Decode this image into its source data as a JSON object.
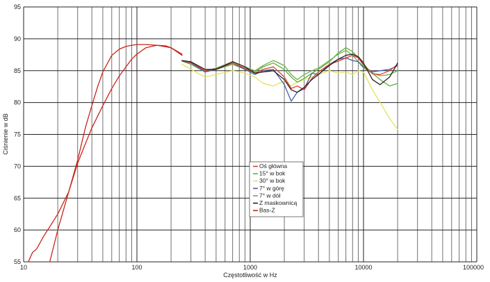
{
  "chart_data": {
    "type": "line",
    "xlabel": "Częstotliwość w Hz",
    "ylabel": "Ciśnienie w dB",
    "xscale": "log",
    "xlim": [
      10,
      100000
    ],
    "ylim": [
      55,
      95
    ],
    "xticks": [
      10,
      100,
      1000,
      10000,
      100000
    ],
    "xtick_labels": [
      "10",
      "100",
      "1000",
      "10000",
      "100000"
    ],
    "yticks": [
      55,
      60,
      65,
      70,
      75,
      80,
      85,
      90,
      95
    ],
    "ytick_labels": [
      "55",
      "60",
      "65",
      "70",
      "75",
      "80",
      "85",
      "90",
      "95"
    ],
    "grid": true,
    "legend_position": "bottom-center",
    "series": [
      {
        "name": "Oś główna",
        "color": "#e03c28",
        "x": [
          250,
          300,
          400,
          500,
          700,
          900,
          1100,
          1300,
          1600,
          2000,
          2300,
          2600,
          3000,
          3500,
          4000,
          5000,
          6000,
          7000,
          8000,
          9000,
          10000,
          12000,
          14000,
          17000,
          20000
        ],
        "y": [
          86.5,
          86.3,
          85.0,
          85.3,
          86.2,
          85.4,
          84.6,
          85.2,
          85.6,
          84.0,
          82.2,
          82.6,
          82.0,
          83.8,
          84.8,
          86.0,
          86.5,
          87.0,
          87.4,
          87.0,
          86.0,
          84.5,
          84.4,
          85.0,
          86.0
        ]
      },
      {
        "name": "15° w bok",
        "color": "#5fae3a",
        "x": [
          250,
          300,
          400,
          500,
          700,
          900,
          1100,
          1300,
          1600,
          2000,
          2300,
          2600,
          3000,
          3500,
          4000,
          5000,
          6000,
          7000,
          8000,
          9000,
          10000,
          12000,
          14000,
          17000,
          20000
        ],
        "y": [
          86.5,
          86.0,
          84.8,
          85.2,
          86.0,
          85.2,
          84.8,
          85.6,
          86.2,
          85.2,
          84.0,
          83.2,
          83.8,
          84.6,
          85.2,
          86.4,
          87.8,
          88.6,
          88.0,
          87.0,
          85.8,
          84.6,
          83.6,
          82.6,
          83.0
        ]
      },
      {
        "name": "30° w bok",
        "color": "#e2e45a",
        "x": [
          250,
          300,
          400,
          500,
          700,
          900,
          1100,
          1300,
          1600,
          2000,
          2300,
          2600,
          3000,
          3500,
          4000,
          5000,
          6000,
          7000,
          8000,
          9000,
          10000,
          12000,
          14000,
          17000,
          20000
        ],
        "y": [
          86.0,
          85.2,
          84.0,
          84.4,
          85.0,
          84.6,
          84.0,
          83.0,
          82.6,
          83.4,
          82.6,
          83.2,
          83.6,
          84.0,
          84.4,
          85.0,
          84.6,
          84.8,
          84.4,
          85.0,
          84.8,
          82.0,
          80.0,
          77.5,
          75.8
        ]
      },
      {
        "name": "7° w górę",
        "color": "#4a5aa8",
        "x": [
          250,
          300,
          400,
          500,
          700,
          900,
          1100,
          1300,
          1600,
          2000,
          2300,
          2600,
          3000,
          3500,
          4000,
          5000,
          6000,
          7000,
          8000,
          9000,
          10000,
          12000,
          14000,
          17000,
          20000
        ],
        "y": [
          86.5,
          86.2,
          84.8,
          85.2,
          86.2,
          85.2,
          84.4,
          85.0,
          85.2,
          82.8,
          80.2,
          81.6,
          82.2,
          84.6,
          84.4,
          86.0,
          86.8,
          87.0,
          86.6,
          86.4,
          85.6,
          84.8,
          85.0,
          85.2,
          85.8
        ]
      },
      {
        "name": "7° w dół",
        "color": "#6ab24a",
        "x": [
          250,
          300,
          400,
          500,
          700,
          900,
          1100,
          1300,
          1600,
          2000,
          2300,
          2600,
          3000,
          3500,
          4000,
          5000,
          6000,
          7000,
          8000,
          9000,
          10000,
          12000,
          14000,
          17000,
          20000
        ],
        "y": [
          86.6,
          86.2,
          85.0,
          85.4,
          86.4,
          85.6,
          85.0,
          85.8,
          86.6,
          85.8,
          84.4,
          83.6,
          84.4,
          85.0,
          85.4,
          86.6,
          87.6,
          88.2,
          87.4,
          86.4,
          85.4,
          84.6,
          84.2,
          84.4,
          85.0
        ]
      },
      {
        "name": "Z maskownicą",
        "color": "#2a1f1f",
        "x": [
          250,
          300,
          400,
          500,
          700,
          900,
          1100,
          1300,
          1600,
          2000,
          2300,
          2600,
          3000,
          3500,
          4000,
          5000,
          6000,
          7000,
          8000,
          9000,
          10000,
          12000,
          14000,
          17000,
          20000
        ],
        "y": [
          86.6,
          86.4,
          85.2,
          85.2,
          86.4,
          85.6,
          84.6,
          84.8,
          85.0,
          83.6,
          82.0,
          81.6,
          82.4,
          83.6,
          84.4,
          85.8,
          86.8,
          87.4,
          87.6,
          87.2,
          86.2,
          83.6,
          82.8,
          84.0,
          86.2
        ]
      },
      {
        "name": "Bas-Z",
        "color": "#c8261c",
        "x": [
          11,
          12,
          13,
          15,
          17,
          20,
          25,
          30,
          35,
          40,
          50,
          60,
          70,
          80,
          90,
          100,
          120,
          150,
          180,
          200,
          250
        ],
        "y": [
          55,
          56.5,
          57,
          59,
          60.5,
          62.5,
          66,
          70.5,
          73.5,
          76,
          79.5,
          82.2,
          84.2,
          85.6,
          86.8,
          87.6,
          88.6,
          89.0,
          88.9,
          88.6,
          87.4
        ]
      }
    ],
    "extra_lines": [
      {
        "color": "#c8261c",
        "x": [
          17,
          20,
          25,
          30,
          35,
          40,
          45,
          50,
          60,
          70,
          80,
          90,
          100,
          120,
          150,
          200,
          250
        ],
        "y": [
          55,
          60,
          66,
          71,
          76,
          79.5,
          82.5,
          84.8,
          87.4,
          88.4,
          88.8,
          89.0,
          89.1,
          89.1,
          89.0,
          88.6,
          87.6
        ]
      }
    ]
  }
}
